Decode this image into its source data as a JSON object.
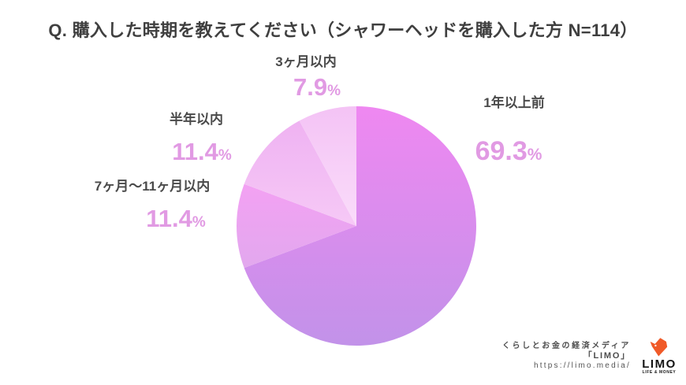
{
  "title": "Q. 購入した時期を教えてください（シャワーヘッドを購入した方 N=114）",
  "percent_sign": "%",
  "chart_data": {
    "type": "pie",
    "title": "Q. 購入した時期を教えてください（シャワーヘッドを購入した方 N=114）",
    "sample_size_label": "N=114",
    "start_angle_deg": 0,
    "direction": "clockwise",
    "label_color": "#4a4a4a",
    "value_color": "#e19ae3",
    "slices": [
      {
        "label": "1年以上前",
        "value": 69.3,
        "color_top": "#ef88f1",
        "color_bottom": "#c292e9"
      },
      {
        "label": "7ヶ月～11ヶ月以内",
        "value": 11.4,
        "color_top": "#f3a1f3",
        "color_bottom": "#e2a8ee"
      },
      {
        "label": "半年以内",
        "value": 11.4,
        "color_top": "#efb2f2",
        "color_bottom": "#f6c9f6"
      },
      {
        "label": "3ヶ月以内",
        "value": 7.9,
        "color_top": "#f4c3f5",
        "color_bottom": "#fadcfa"
      }
    ]
  },
  "credit": {
    "line1": "くらしとお金の経済メディア",
    "line2": "「LIMO」",
    "line3": "https://limo.media/",
    "logo_name": "LIMO",
    "logo_tagline": "LIFE & MONEY",
    "logo_color": "#f05a28"
  }
}
